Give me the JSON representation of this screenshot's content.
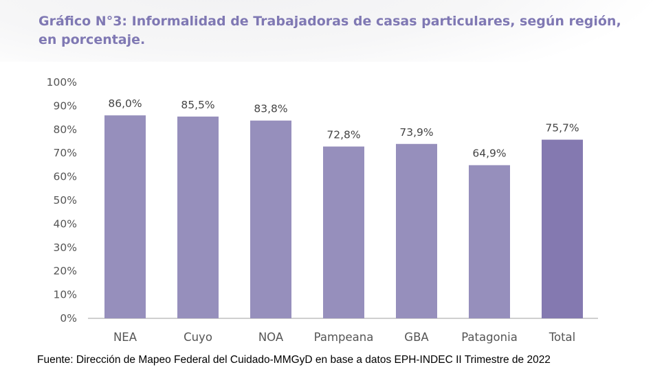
{
  "title": "Gráfico N°3: Informalidad de Trabajadoras de casas particulares, según región, en porcentaje.",
  "footer": "Fuente: Dirección de Mapeo Federal del Cuidado-MMGyD en base a datos EPH-INDEC II Trimestre de 2022",
  "chart_data": {
    "type": "bar",
    "categories": [
      "NEA",
      "Cuyo",
      "NOA",
      "Pampeana",
      "GBA",
      "Patagonia",
      "Total"
    ],
    "values": [
      86.0,
      85.5,
      83.8,
      72.8,
      73.9,
      64.9,
      75.7
    ],
    "data_labels": [
      "86,0%",
      "85,5%",
      "83,8%",
      "72,8%",
      "73,9%",
      "64,9%",
      "75,7%"
    ],
    "ylim": [
      0,
      100
    ],
    "yticks": [
      "0%",
      "10%",
      "20%",
      "30%",
      "40%",
      "50%",
      "60%",
      "70%",
      "80%",
      "90%",
      "100%"
    ],
    "grid": false,
    "colors": {
      "bar": "#968fbc",
      "total_bar": "#8479b0",
      "title": "#7f78b3"
    }
  }
}
